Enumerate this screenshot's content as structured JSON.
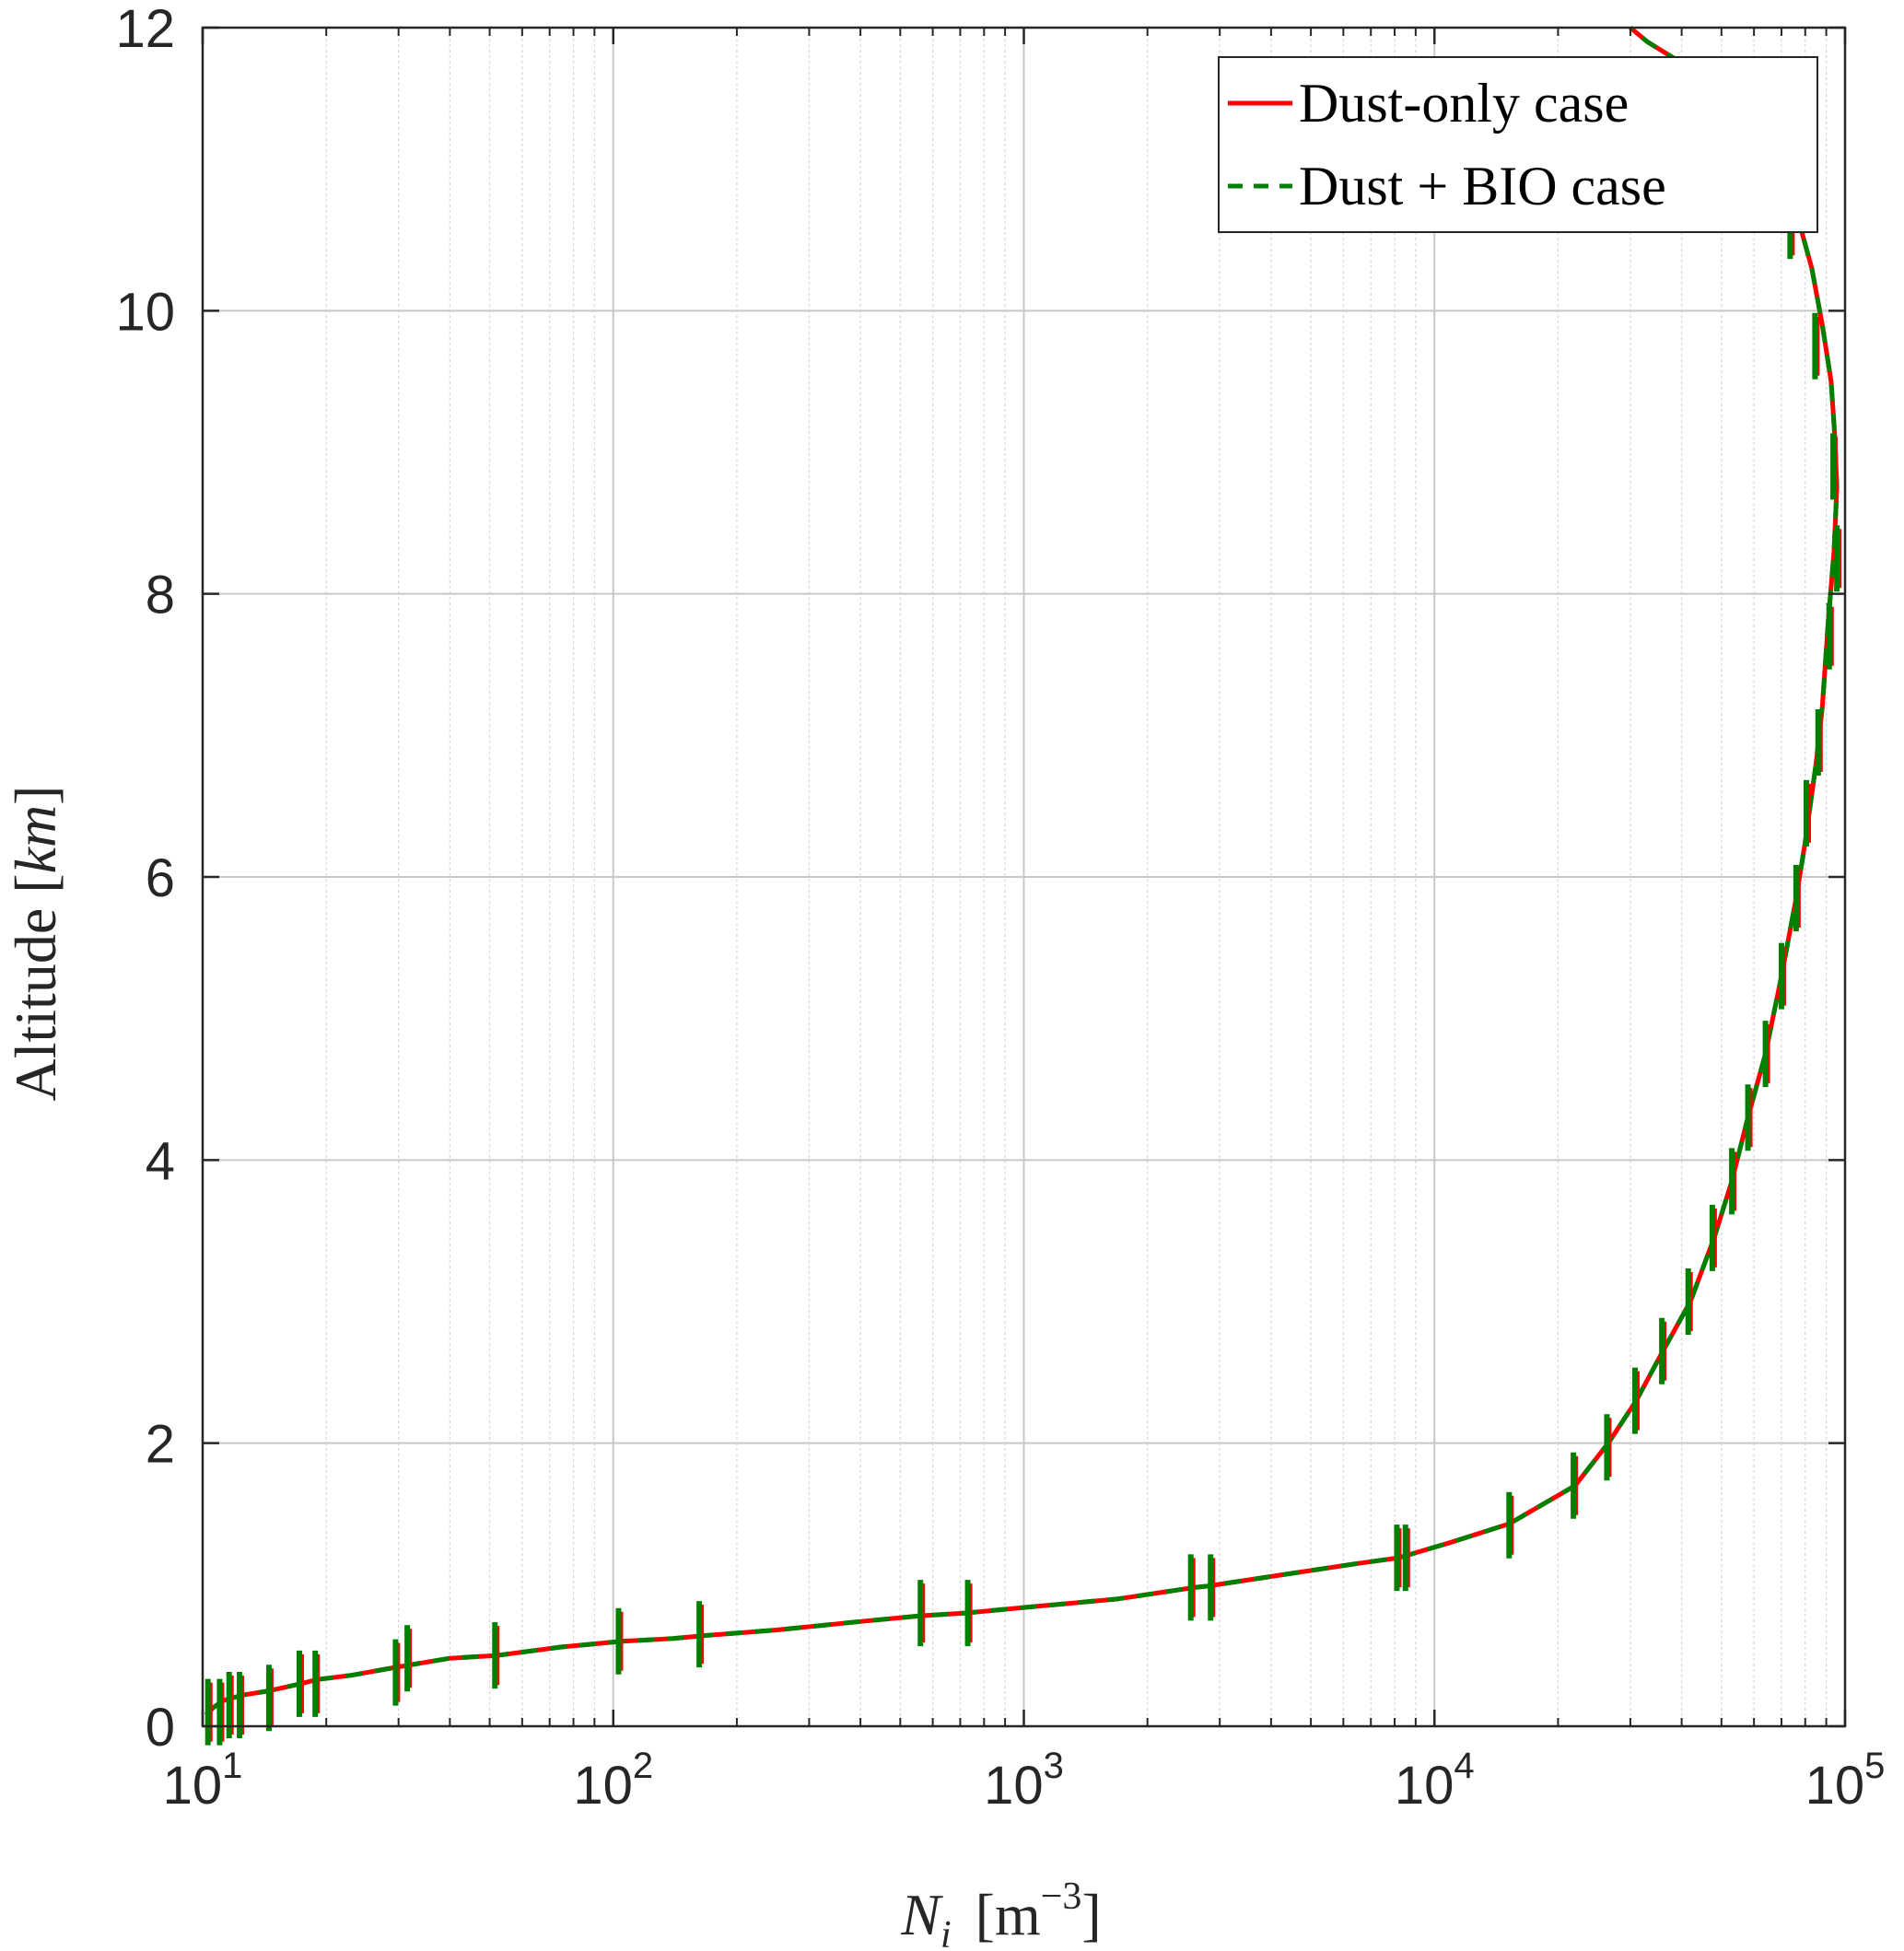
{
  "chart_data": {
    "type": "line",
    "title": "",
    "xlabel": {
      "base": "N",
      "sub": "i",
      "unit_open": "[m",
      "unit_sup": "−3",
      "unit_close": "]"
    },
    "ylabel": {
      "text": "Altitude [",
      "unit": "km",
      "close": "]"
    },
    "xscale": "log",
    "xlim": [
      10,
      100000
    ],
    "ylim": [
      0,
      12
    ],
    "grid": true,
    "legend_position": "top-right",
    "x_ticks": [
      {
        "base": "10",
        "exp": "1",
        "value": 10
      },
      {
        "base": "10",
        "exp": "2",
        "value": 100
      },
      {
        "base": "10",
        "exp": "3",
        "value": 1000
      },
      {
        "base": "10",
        "exp": "4",
        "value": 10000
      },
      {
        "base": "10",
        "exp": "5",
        "value": 100000
      }
    ],
    "y_ticks": [
      {
        "label": "0",
        "value": 0
      },
      {
        "label": "2",
        "value": 2
      },
      {
        "label": "4",
        "value": 4
      },
      {
        "label": "6",
        "value": 6
      },
      {
        "label": "8",
        "value": 8
      },
      {
        "label": "10",
        "value": 10
      },
      {
        "label": "12",
        "value": 12
      }
    ],
    "series": [
      {
        "name": "Dust-only case",
        "color": "#ff0000",
        "style": "solid",
        "x": [
          10.2,
          10.6,
          11.2,
          12.5,
          14.5,
          17.3,
          19,
          23,
          30,
          40,
          52,
          75,
          105,
          140,
          165,
          250,
          400,
          560,
          720,
          1100,
          1700,
          2600,
          2800,
          4500,
          6500,
          8200,
          8400,
          11000,
          15200,
          22000,
          26500,
          31000,
          36000,
          42000,
          48000,
          53000,
          58000,
          64000,
          70000,
          76000,
          80000,
          85000,
          88000,
          91000,
          94000,
          95500,
          94500,
          92500,
          88000,
          83000,
          76000,
          68000,
          58000,
          48000,
          40000,
          33000,
          30000
        ],
        "y": [
          0.08,
          0.13,
          0.18,
          0.22,
          0.25,
          0.3,
          0.33,
          0.36,
          0.42,
          0.48,
          0.5,
          0.56,
          0.6,
          0.62,
          0.64,
          0.68,
          0.74,
          0.78,
          0.8,
          0.85,
          0.9,
          0.98,
          0.99,
          1.08,
          1.15,
          1.19,
          1.2,
          1.3,
          1.43,
          1.7,
          2.0,
          2.3,
          2.65,
          3.0,
          3.45,
          3.85,
          4.3,
          4.75,
          5.3,
          5.85,
          6.25,
          6.8,
          7.2,
          7.8,
          8.3,
          8.75,
          9.1,
          9.5,
          9.9,
          10.3,
          10.7,
          11.0,
          11.3,
          11.55,
          11.75,
          11.9,
          12.0
        ]
      },
      {
        "name": "Dust + BIO case",
        "color": "#008000",
        "style": "dashed",
        "x": [
          10.2,
          10.6,
          11.2,
          12.5,
          14.5,
          17.3,
          19,
          23,
          30,
          40,
          52,
          75,
          105,
          140,
          165,
          250,
          400,
          560,
          720,
          1100,
          1700,
          2600,
          2800,
          4500,
          6500,
          8200,
          8400,
          11000,
          15200,
          22000,
          26500,
          31000,
          36000,
          42000,
          48000,
          53000,
          58000,
          64000,
          70000,
          76000,
          80000,
          85000,
          88000,
          91000,
          94000,
          95500,
          94500,
          92500,
          88000,
          83000,
          76000,
          68000,
          58000,
          48000,
          40000,
          33000,
          30000
        ],
        "y": [
          0.08,
          0.13,
          0.18,
          0.22,
          0.25,
          0.3,
          0.33,
          0.36,
          0.42,
          0.48,
          0.5,
          0.56,
          0.6,
          0.62,
          0.64,
          0.68,
          0.74,
          0.78,
          0.8,
          0.85,
          0.9,
          0.98,
          0.99,
          1.08,
          1.15,
          1.19,
          1.2,
          1.3,
          1.43,
          1.7,
          2.0,
          2.3,
          2.65,
          3.0,
          3.45,
          3.85,
          4.3,
          4.75,
          5.3,
          5.85,
          6.25,
          6.8,
          7.2,
          7.8,
          8.3,
          8.75,
          9.1,
          9.5,
          9.9,
          10.3,
          10.7,
          11.0,
          11.3,
          11.55,
          11.75,
          11.9,
          12.0
        ]
      }
    ],
    "error_bars": {
      "color": "#008000",
      "accent_color": "#ff0000",
      "points": [
        {
          "x": 10.3,
          "y": 0.1
        },
        {
          "x": 11.0,
          "y": 0.1
        },
        {
          "x": 11.6,
          "y": 0.15
        },
        {
          "x": 12.3,
          "y": 0.15
        },
        {
          "x": 14.5,
          "y": 0.2
        },
        {
          "x": 17.2,
          "y": 0.3
        },
        {
          "x": 18.8,
          "y": 0.3
        },
        {
          "x": 29.5,
          "y": 0.38
        },
        {
          "x": 31.5,
          "y": 0.48
        },
        {
          "x": 51.5,
          "y": 0.5
        },
        {
          "x": 103,
          "y": 0.6
        },
        {
          "x": 162,
          "y": 0.65
        },
        {
          "x": 560,
          "y": 0.8
        },
        {
          "x": 730,
          "y": 0.8
        },
        {
          "x": 2550,
          "y": 0.98
        },
        {
          "x": 2850,
          "y": 0.98
        },
        {
          "x": 8100,
          "y": 1.19
        },
        {
          "x": 8500,
          "y": 1.19
        },
        {
          "x": 15200,
          "y": 1.42
        },
        {
          "x": 21800,
          "y": 1.7
        },
        {
          "x": 26300,
          "y": 1.97
        },
        {
          "x": 30800,
          "y": 2.3
        },
        {
          "x": 35800,
          "y": 2.65
        },
        {
          "x": 41500,
          "y": 3.0
        },
        {
          "x": 47500,
          "y": 3.45
        },
        {
          "x": 53000,
          "y": 3.85
        },
        {
          "x": 58000,
          "y": 4.3
        },
        {
          "x": 64000,
          "y": 4.75
        },
        {
          "x": 70000,
          "y": 5.3
        },
        {
          "x": 76000,
          "y": 5.85
        },
        {
          "x": 80500,
          "y": 6.45
        },
        {
          "x": 86000,
          "y": 6.95
        },
        {
          "x": 91500,
          "y": 7.7
        },
        {
          "x": 95500,
          "y": 8.25
        },
        {
          "x": 93500,
          "y": 8.9
        },
        {
          "x": 84500,
          "y": 9.75
        },
        {
          "x": 73500,
          "y": 10.6
        }
      ]
    },
    "legend": [
      {
        "label": "Dust-only case",
        "color": "#ff0000",
        "style": "solid"
      },
      {
        "label": "Dust + BIO case",
        "color": "#008000",
        "style": "dashed"
      }
    ]
  }
}
